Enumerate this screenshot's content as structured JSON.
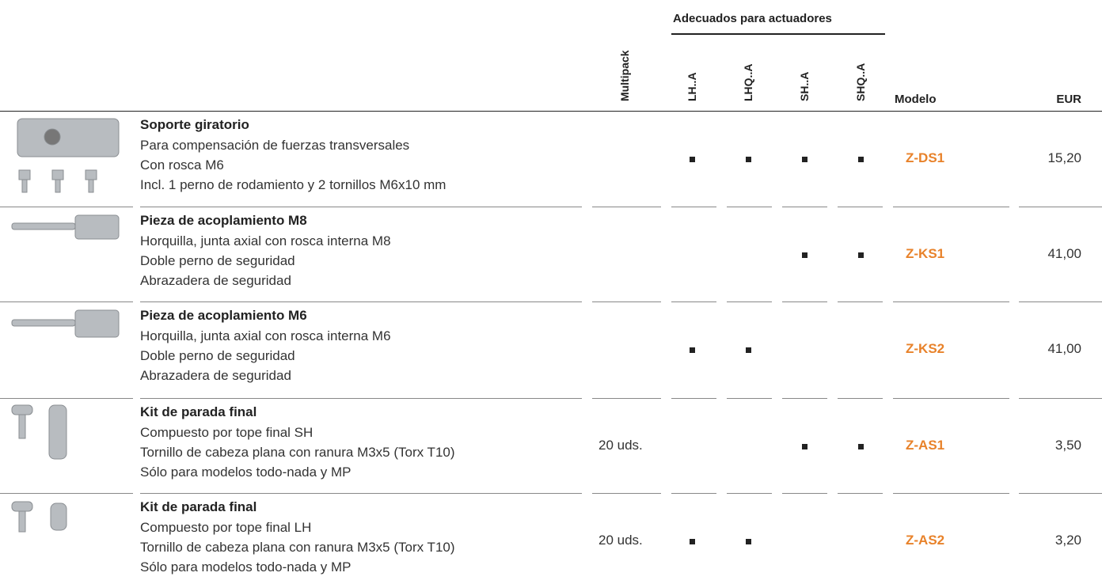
{
  "header": {
    "group": "Adecuados para actuadores",
    "columns": [
      "Multipack",
      "LH..A",
      "LHQ..A",
      "SH..A",
      "SHQ..A",
      "Modelo",
      "EUR"
    ]
  },
  "rows": [
    {
      "title": "Soporte giratorio",
      "lines": [
        "Para compensación de fuerzas transversales",
        "Con rosca M6",
        "Incl. 1 perno de rodamiento y 2 tornillos M6x10 mm"
      ],
      "fits": [
        true,
        true,
        true,
        true
      ],
      "model": "Z-DS1",
      "price": "15,20"
    },
    {
      "title": "Pieza de acoplamiento M8",
      "lines": [
        "Horquilla, junta axial con rosca interna M8",
        "Doble perno de seguridad",
        "Abrazadera de seguridad"
      ],
      "fits": [
        false,
        false,
        true,
        true
      ],
      "model": "Z-KS1",
      "price": "41,00"
    },
    {
      "title": "Pieza de acoplamiento M6",
      "lines": [
        "Horquilla, junta axial con rosca interna M6",
        "Doble perno de seguridad",
        "Abrazadera de seguridad"
      ],
      "fits": [
        true,
        true,
        false,
        false
      ],
      "model": "Z-KS2",
      "price": "41,00"
    },
    {
      "title": "Kit de parada final",
      "lines": [
        "Compuesto por tope final SH",
        "Tornillo de cabeza plana con ranura M3x5 (Torx T10)",
        "Sólo para modelos todo-nada y MP"
      ],
      "multipack": "20 uds.",
      "fits": [
        false,
        false,
        true,
        true
      ],
      "model": "Z-AS1",
      "price": "3,50"
    },
    {
      "title": "Kit de parada final",
      "lines": [
        "Compuesto por tope final LH",
        "Tornillo de cabeza plana con ranura M3x5 (Torx T10)",
        "Sólo para modelos todo-nada y MP"
      ],
      "multipack": "20 uds.",
      "fits": [
        true,
        true,
        false,
        false
      ],
      "model": "Z-AS2",
      "price": "3,20"
    }
  ]
}
